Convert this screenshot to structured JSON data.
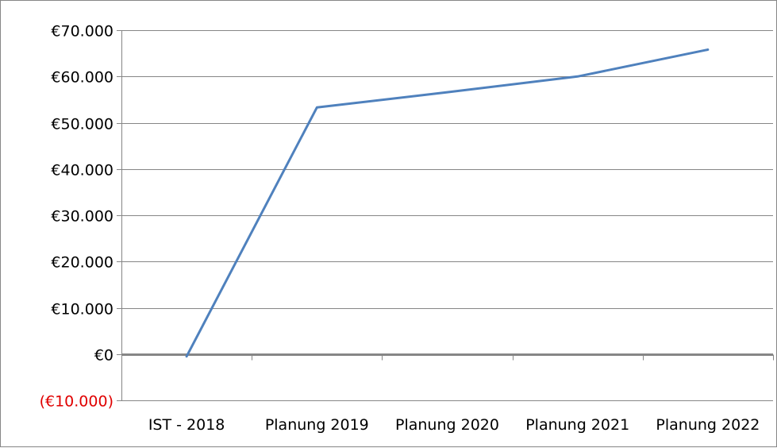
{
  "chart_data": {
    "type": "line",
    "title": "",
    "xlabel": "",
    "ylabel": "",
    "categories": [
      "IST - 2018",
      "Planung 2019",
      "Planung 2020",
      "Planung 2021",
      "Planung 2022"
    ],
    "series": [
      {
        "values": [
          -500,
          53300,
          56600,
          60000,
          65800
        ]
      }
    ],
    "ylim": [
      -10000,
      70000
    ],
    "yticks": [
      -10000,
      0,
      10000,
      20000,
      30000,
      40000,
      50000,
      60000,
      70000
    ],
    "ytick_labels": [
      "(€10.000)",
      "€0",
      "€10.000",
      "€20.000",
      "€30.000",
      "€40.000",
      "€50.000",
      "€60.000",
      "€70.000"
    ],
    "grid": true,
    "legend": "none",
    "colors": {
      "line": "#4f81bd",
      "grid": "#868686",
      "negative_label": "#e00000"
    }
  }
}
